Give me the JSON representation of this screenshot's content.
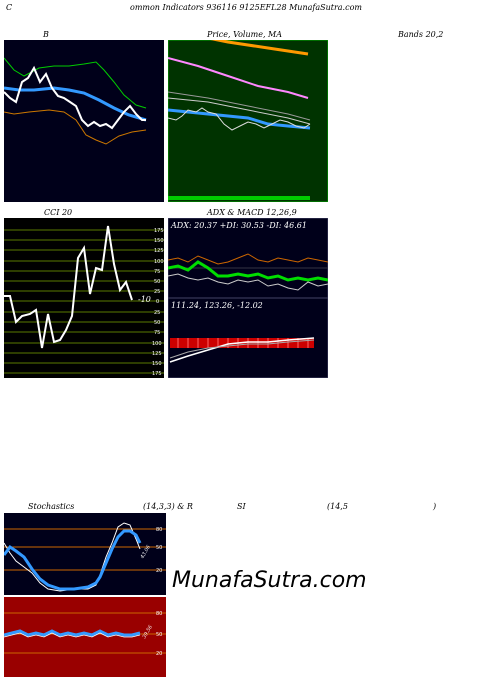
{
  "header": {
    "title": "ommon Indicators 936116 9125EFL28 MunafaSutra.com",
    "left_letter": "C"
  },
  "bollinger": {
    "label": "B",
    "right_label": "Bands 20,2"
  },
  "price_ma": {
    "label": "Price, Volume, MA"
  },
  "cci": {
    "label": "CCI 20",
    "value": "-10",
    "ticks": [
      "175",
      "150",
      "125",
      "100",
      "75",
      "50",
      "25",
      "0",
      "25",
      "50",
      "75",
      "100",
      "125",
      "150",
      "175"
    ]
  },
  "adx_macd": {
    "label": "ADX & MACD 12,26,9",
    "adx_text": "ADX: 20.37 +DI: 30.53 -DI: 46.61",
    "macd_text": "111.24, 123.26, -12.02"
  },
  "stochastics": {
    "label_left": "Stochastics",
    "label_params": "(14,3,3) & R",
    "label_si": "SI",
    "label_rsi": "(14,5",
    "label_close": ")",
    "stoch_ticks": [
      "80",
      "50",
      "20"
    ],
    "stoch_value": "43.06",
    "rsi_ticks": [
      "80",
      "50",
      "20"
    ],
    "rsi_value": "39.56"
  },
  "watermark": "MunafaSutra.com",
  "colors": {
    "dark_panel": "#00001a",
    "green_panel": "#003300",
    "rsi_panel": "#990000",
    "cci_panel": "#000000"
  }
}
